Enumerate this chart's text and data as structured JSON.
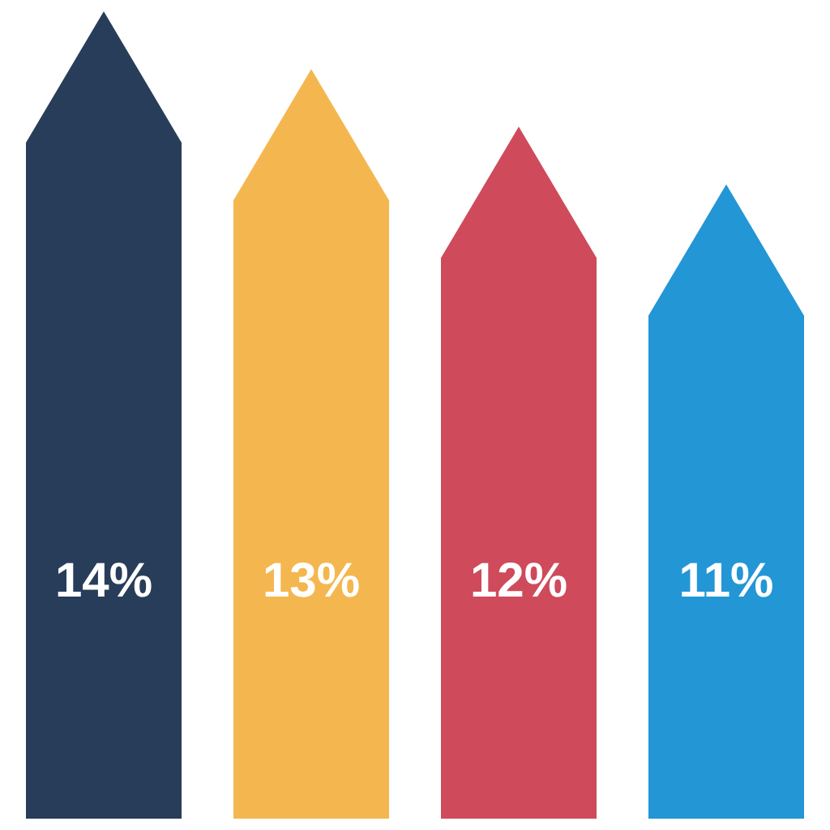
{
  "chart_data": {
    "type": "bar",
    "categories": [
      null,
      null,
      null,
      null
    ],
    "values": [
      14,
      13,
      12,
      11
    ],
    "colors": [
      "#283d5a",
      "#f4b74f",
      "#cf4a5b",
      "#2396d6"
    ],
    "value_labels": [
      "14%",
      "13%",
      "12%",
      "11%"
    ]
  }
}
